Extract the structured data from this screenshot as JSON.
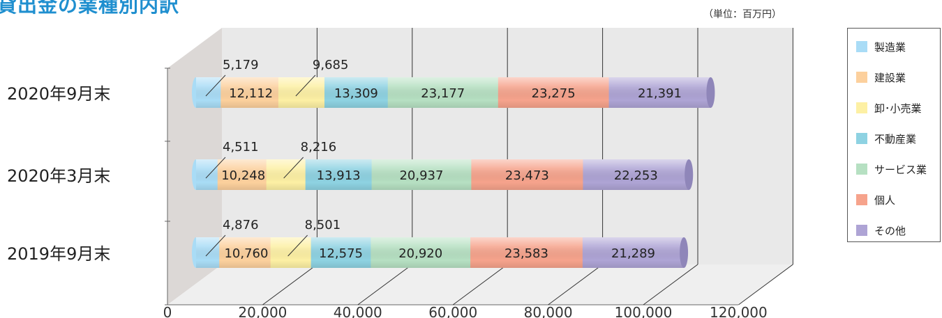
{
  "page_title": "貸出金の業種別内訳",
  "unit_label": "（単位：百万円）",
  "chart_data": {
    "type": "bar",
    "orientation": "horizontal",
    "stacked": true,
    "style": "3d-cylinder",
    "title": "貸出金の業種別内訳",
    "unit": "（単位：百万円）",
    "categories": [
      "2020年9月末",
      "2020年3月末",
      "2019年9月末"
    ],
    "series": [
      {
        "name": "製造業",
        "color": "#a9dcf6",
        "values": [
          5179,
          4511,
          4876
        ],
        "labels": [
          "5,179",
          "4,511",
          "4,876"
        ]
      },
      {
        "name": "建設業",
        "color": "#fcd09d",
        "values": [
          12112,
          10248,
          10760
        ],
        "labels": [
          "12,112",
          "10,248",
          "10,760"
        ]
      },
      {
        "name": "卸･小売業",
        "color": "#fdf0a4",
        "values": [
          9685,
          8216,
          8501
        ],
        "labels": [
          "9,685",
          "8,216",
          "8,501"
        ]
      },
      {
        "name": "不動産業",
        "color": "#8ed2e2",
        "values": [
          13309,
          13913,
          12575
        ],
        "labels": [
          "13,309",
          "13,913",
          "12,575"
        ]
      },
      {
        "name": "サービス業",
        "color": "#b6e0c2",
        "values": [
          23177,
          20937,
          20920
        ],
        "labels": [
          "23,177",
          "20,937",
          "20,920"
        ]
      },
      {
        "name": "個人",
        "color": "#f6a38c",
        "values": [
          23275,
          23473,
          23583
        ],
        "labels": [
          "23,275",
          "23,473",
          "23,583"
        ]
      },
      {
        "name": "その他",
        "color": "#aea4d5",
        "values": [
          21391,
          22253,
          21289
        ],
        "labels": [
          "21,391",
          "22,253",
          "21,289"
        ]
      }
    ],
    "x_ticks": [
      "0",
      "20,000",
      "40,000",
      "60,000",
      "80,000",
      "100,000",
      "120,000"
    ],
    "xlim": [
      0,
      120000
    ],
    "grid": true,
    "legend_position": "right"
  }
}
